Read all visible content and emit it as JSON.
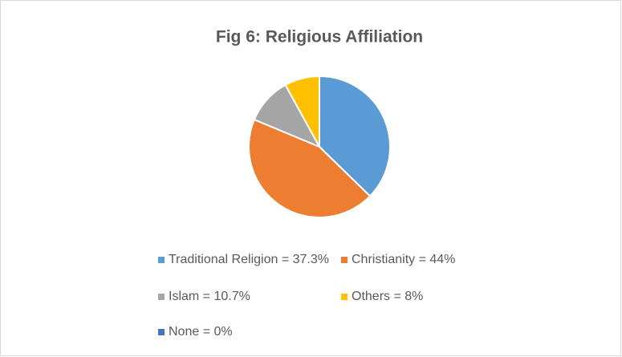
{
  "chart_data": {
    "type": "pie",
    "title": "Fig 6: Religious Affiliation",
    "categories": [
      "Traditional Religion = 37.3%",
      "Christianity = 44%",
      "Islam = 10.7%",
      "Others = 8%",
      "None = 0%"
    ],
    "values": [
      37.3,
      44,
      10.7,
      8,
      0
    ],
    "colors": [
      "#5b9bd5",
      "#ed7d31",
      "#a5a5a5",
      "#ffc000",
      "#4472c4"
    ],
    "legend": "bottom"
  }
}
